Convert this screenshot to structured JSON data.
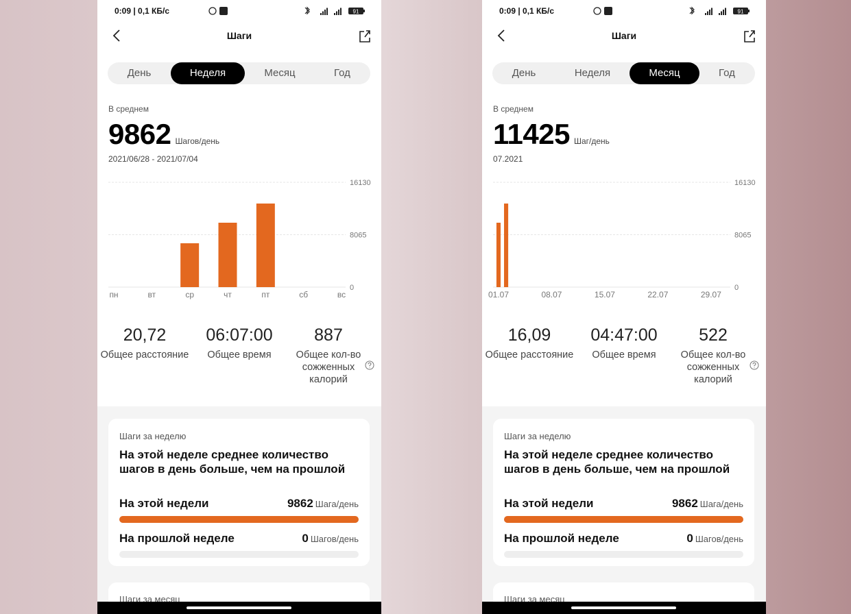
{
  "screens": [
    {
      "status_bar": {
        "time_speed": "0:09 | 0,1 КБ/с",
        "battery": "91"
      },
      "header": {
        "title": "Шаги"
      },
      "tabs": {
        "items": [
          "День",
          "Неделя",
          "Месяц",
          "Год"
        ],
        "active": 1
      },
      "summary": {
        "label": "В среднем",
        "value": "9862",
        "unit": "Шагов/день",
        "period": "2021/06/28 - 2021/07/04"
      },
      "chart": {
        "type": "bar",
        "categories": [
          "пн",
          "вт",
          "ср",
          "чт",
          "пт",
          "сб",
          "вс"
        ],
        "values": [
          0,
          0,
          6750,
          9910,
          12860,
          0,
          0
        ],
        "ylim": [
          0,
          16130
        ],
        "yticks": [
          0,
          8065,
          16130
        ],
        "color": "#e3681f"
      },
      "stats": [
        {
          "value": "20,72",
          "label": "Общее расстояние"
        },
        {
          "value": "06:07:00",
          "label": "Общее время"
        },
        {
          "value": "887",
          "label": "Общее кол-во сожженных калорий"
        }
      ],
      "weekly_card": {
        "title": "Шаги за неделю",
        "headline": "На этой неделе среднее количество шагов в день больше, чем на прошлой",
        "rows": [
          {
            "label": "На этой недели",
            "value": 9862,
            "unit": "Шага/день"
          },
          {
            "label": "На прошлой неделе",
            "value": 0,
            "unit": "Шагов/день"
          }
        ]
      },
      "monthly_card": {
        "title": "Шаги за месяц"
      }
    },
    {
      "status_bar": {
        "time_speed": "0:09 | 0,1 КБ/с",
        "battery": "91"
      },
      "header": {
        "title": "Шаги"
      },
      "tabs": {
        "items": [
          "День",
          "Неделя",
          "Месяц",
          "Год"
        ],
        "active": 2
      },
      "summary": {
        "label": "В среднем",
        "value": "11425",
        "unit": "Шаг/день",
        "period": "07.2021"
      },
      "chart": {
        "type": "bar",
        "categories": [
          "01.07",
          null,
          null,
          null,
          null,
          null,
          null,
          "08.07",
          null,
          null,
          null,
          null,
          null,
          null,
          "15.07",
          null,
          null,
          null,
          null,
          null,
          null,
          "22.07",
          null,
          null,
          null,
          null,
          null,
          null,
          "29.07",
          null,
          null
        ],
        "values": [
          9910,
          12860,
          0,
          0,
          0,
          0,
          0,
          0,
          0,
          0,
          0,
          0,
          0,
          0,
          0,
          0,
          0,
          0,
          0,
          0,
          0,
          0,
          0,
          0,
          0,
          0,
          0,
          0,
          0,
          0,
          0
        ],
        "ylim": [
          0,
          16130
        ],
        "yticks": [
          0,
          8065,
          16130
        ],
        "color": "#e3681f"
      },
      "stats": [
        {
          "value": "16,09",
          "label": "Общее расстояние"
        },
        {
          "value": "04:47:00",
          "label": "Общее время"
        },
        {
          "value": "522",
          "label": "Общее кол-во сожженных калорий"
        }
      ],
      "weekly_card": {
        "title": "Шаги за неделю",
        "headline": "На этой неделе среднее количество шагов в день больше, чем на прошлой",
        "rows": [
          {
            "label": "На этой недели",
            "value": 9862,
            "unit": "Шага/день"
          },
          {
            "label": "На прошлой неделе",
            "value": 0,
            "unit": "Шагов/день"
          }
        ]
      },
      "monthly_card": {
        "title": "Шаги за месяц"
      }
    }
  ]
}
